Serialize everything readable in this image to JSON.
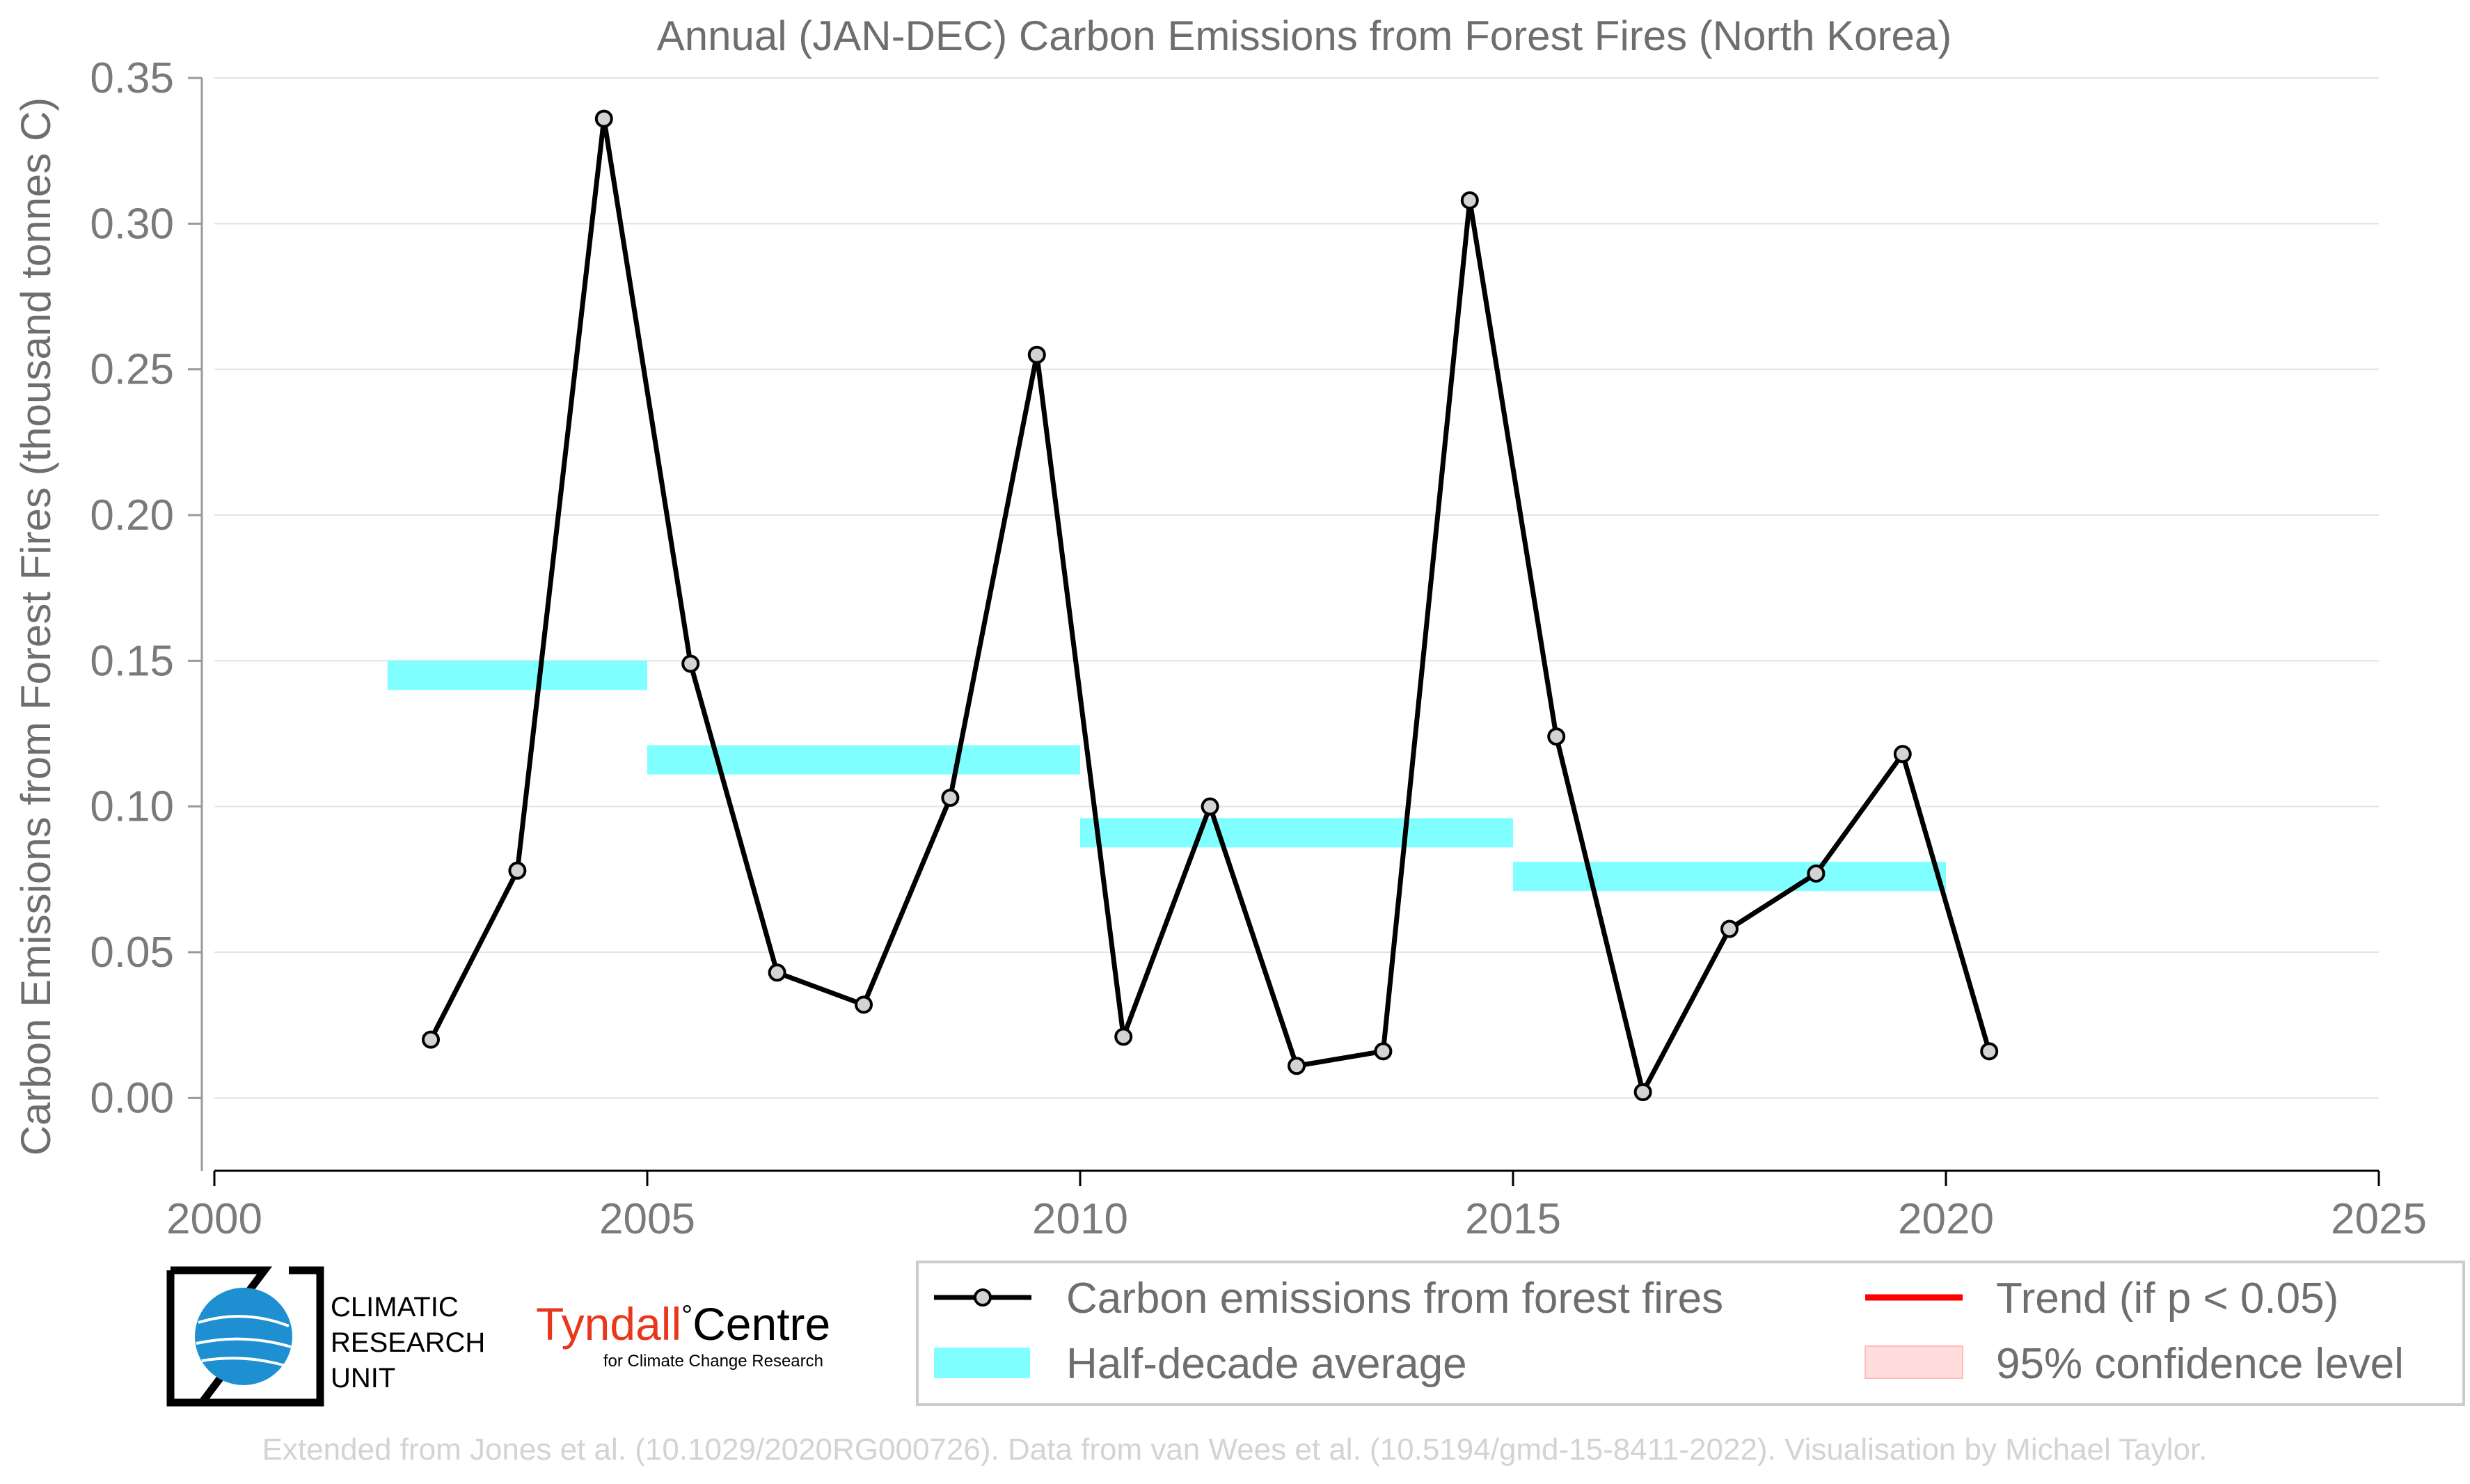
{
  "chart_data": {
    "type": "line",
    "title": "Annual (JAN-DEC) Carbon Emissions from Forest Fires (North Korea)",
    "ylabel": "Carbon Emissions from Forest Fires (thousand tonnes C)",
    "xlabel": "",
    "xlim": [
      2000,
      2025
    ],
    "ylim": [
      -0.025,
      0.35
    ],
    "xticks": [
      "2000",
      "2005",
      "2010",
      "2015",
      "2020",
      "2025"
    ],
    "yticks": [
      "0.00",
      "0.05",
      "0.10",
      "0.15",
      "0.20",
      "0.25",
      "0.30",
      "0.35"
    ],
    "grid": "horizontal",
    "series": [
      {
        "name": "Carbon emissions from forest fires",
        "color": "#000000",
        "marker_fill": "#d3d3d3",
        "x": [
          2002.5,
          2003.5,
          2004.5,
          2005.5,
          2006.5,
          2007.5,
          2008.5,
          2009.5,
          2010.5,
          2011.5,
          2012.5,
          2013.5,
          2014.5,
          2015.5,
          2016.5,
          2017.5,
          2018.5,
          2019.5,
          2020.5
        ],
        "y": [
          0.02,
          0.078,
          0.336,
          0.149,
          0.043,
          0.032,
          0.103,
          0.255,
          0.021,
          0.1,
          0.011,
          0.016,
          0.308,
          0.124,
          0.002,
          0.058,
          0.077,
          0.118,
          0.016
        ]
      }
    ],
    "half_decade_average": {
      "name": "Half-decade average",
      "color": "#7fffff",
      "segments": [
        {
          "x0": 2002,
          "x1": 2005,
          "y": 0.145
        },
        {
          "x0": 2005,
          "x1": 2010,
          "y": 0.116
        },
        {
          "x0": 2010,
          "x1": 2015,
          "y": 0.091
        },
        {
          "x0": 2015,
          "x1": 2020,
          "y": 0.076
        }
      ]
    },
    "legend": {
      "placement": "bottom-right",
      "items": [
        {
          "label": "Carbon emissions from forest fires",
          "kind": "line-marker",
          "color": "#000000"
        },
        {
          "label": "Trend (if p < 0.05)",
          "kind": "line",
          "color": "#ff0000"
        },
        {
          "label": "Half-decade average",
          "kind": "band",
          "color": "#7fffff"
        },
        {
          "label": "95% confidence level",
          "kind": "band",
          "color": "#ffdddd"
        }
      ]
    }
  },
  "logos": {
    "cru_lines": [
      "CLIMATIC",
      "RESEARCH",
      "UNIT"
    ],
    "tyndall_main": "Tyndall",
    "tyndall_degree": "°",
    "tyndall_centre": "Centre",
    "tyndall_sub": "for Climate Change Research"
  },
  "credit": "Extended from Jones et al. (10.1029/2020RG000726). Data from van Wees et al. (10.5194/gmd-15-8411-2022). Visualisation by Michael Taylor."
}
